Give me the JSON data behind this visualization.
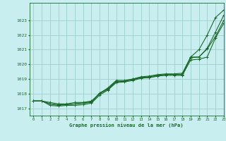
{
  "title": "Graphe pression niveau de la mer (hPa)",
  "bg_color": "#c8eef0",
  "grid_color": "#9ecfcc",
  "line_color": "#1a6b2a",
  "xlim": [
    -0.5,
    23
  ],
  "ylim": [
    1016.5,
    1024.2
  ],
  "yticks": [
    1017,
    1018,
    1019,
    1020,
    1021,
    1022,
    1023
  ],
  "xticks": [
    0,
    1,
    2,
    3,
    4,
    5,
    6,
    7,
    8,
    9,
    10,
    11,
    12,
    13,
    14,
    15,
    16,
    17,
    18,
    19,
    20,
    21,
    22,
    23
  ],
  "series": [
    {
      "x": [
        0,
        1,
        2,
        3,
        4,
        5,
        6,
        7,
        8,
        9,
        10,
        11,
        12,
        13,
        14,
        15,
        16,
        17,
        18,
        19,
        20,
        21,
        22,
        23
      ],
      "y": [
        1017.5,
        1017.5,
        1017.4,
        1017.3,
        1017.3,
        1017.4,
        1017.4,
        1017.5,
        1018.0,
        1018.4,
        1018.9,
        1018.9,
        1019.0,
        1019.15,
        1019.2,
        1019.3,
        1019.35,
        1019.35,
        1019.4,
        1020.5,
        1021.0,
        1022.0,
        1023.2,
        1023.7
      ]
    },
    {
      "x": [
        0,
        1,
        2,
        3,
        4,
        5,
        6,
        7,
        8,
        9,
        10,
        11,
        12,
        13,
        14,
        15,
        16,
        17,
        18,
        19,
        20,
        21,
        22,
        23
      ],
      "y": [
        1017.5,
        1017.5,
        1017.3,
        1017.2,
        1017.25,
        1017.3,
        1017.35,
        1017.45,
        1018.05,
        1018.35,
        1018.85,
        1018.85,
        1019.0,
        1019.1,
        1019.15,
        1019.25,
        1019.3,
        1019.3,
        1019.3,
        1020.45,
        1020.5,
        1021.1,
        1022.2,
        1023.35
      ]
    },
    {
      "x": [
        0,
        1,
        2,
        3,
        4,
        5,
        6,
        7,
        8,
        9,
        10,
        11,
        12,
        13,
        14,
        15,
        16,
        17,
        18,
        19,
        20,
        21,
        22,
        23
      ],
      "y": [
        1017.5,
        1017.5,
        1017.3,
        1017.25,
        1017.25,
        1017.3,
        1017.35,
        1017.4,
        1018.0,
        1018.3,
        1018.8,
        1018.85,
        1018.95,
        1019.1,
        1019.1,
        1019.2,
        1019.3,
        1019.3,
        1019.3,
        1020.5,
        1020.5,
        1021.05,
        1021.9,
        1023.0
      ]
    },
    {
      "x": [
        0,
        1,
        2,
        3,
        4,
        5,
        6,
        7,
        8,
        9,
        10,
        11,
        12,
        13,
        14,
        15,
        16,
        17,
        18,
        19,
        20,
        21,
        22,
        23
      ],
      "y": [
        1017.5,
        1017.5,
        1017.2,
        1017.15,
        1017.2,
        1017.2,
        1017.25,
        1017.35,
        1017.9,
        1018.25,
        1018.75,
        1018.8,
        1018.9,
        1019.05,
        1019.1,
        1019.2,
        1019.25,
        1019.25,
        1019.25,
        1020.3,
        1020.35,
        1020.5,
        1021.8,
        1022.8
      ]
    }
  ]
}
